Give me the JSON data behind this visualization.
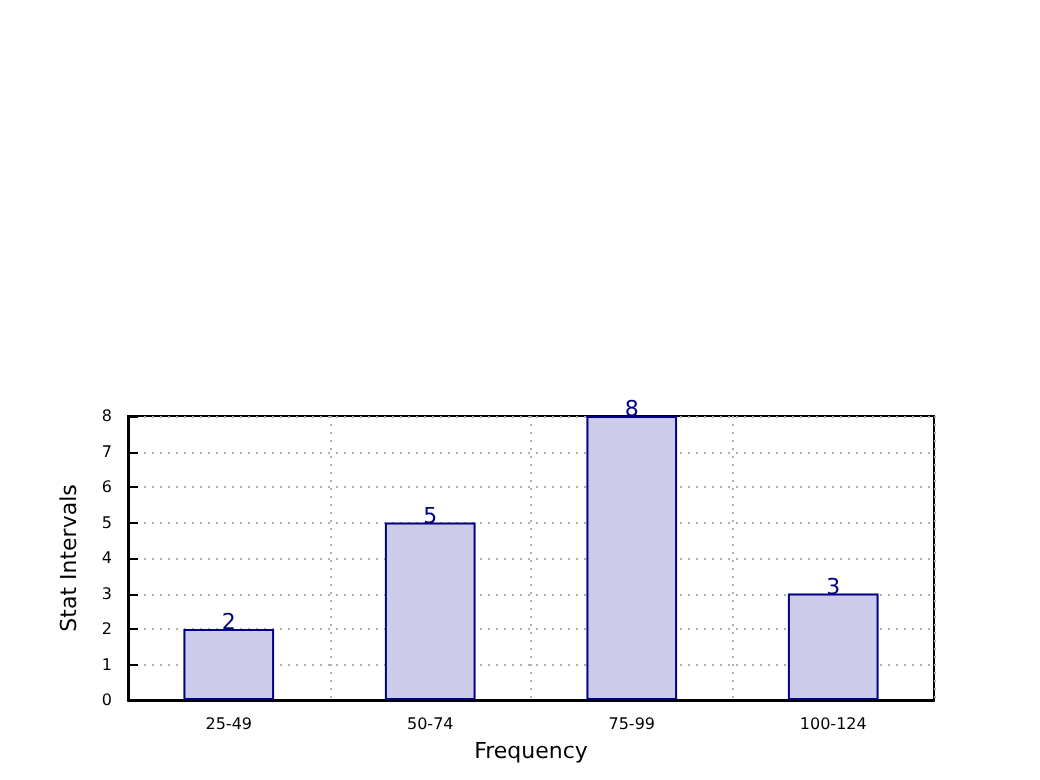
{
  "chart_data": {
    "type": "bar",
    "xlabel": "Frequency",
    "ylabel": "Stat Intervals",
    "categories": [
      "25-49",
      "50-74",
      "75-99",
      "100-124"
    ],
    "values": [
      2,
      5,
      8,
      3
    ],
    "color": "#ccccea",
    "ylim": [
      0,
      8
    ],
    "yticks": [
      0,
      1,
      2,
      3,
      4,
      5,
      6,
      7,
      8
    ],
    "grid": true,
    "data_labels": true
  }
}
